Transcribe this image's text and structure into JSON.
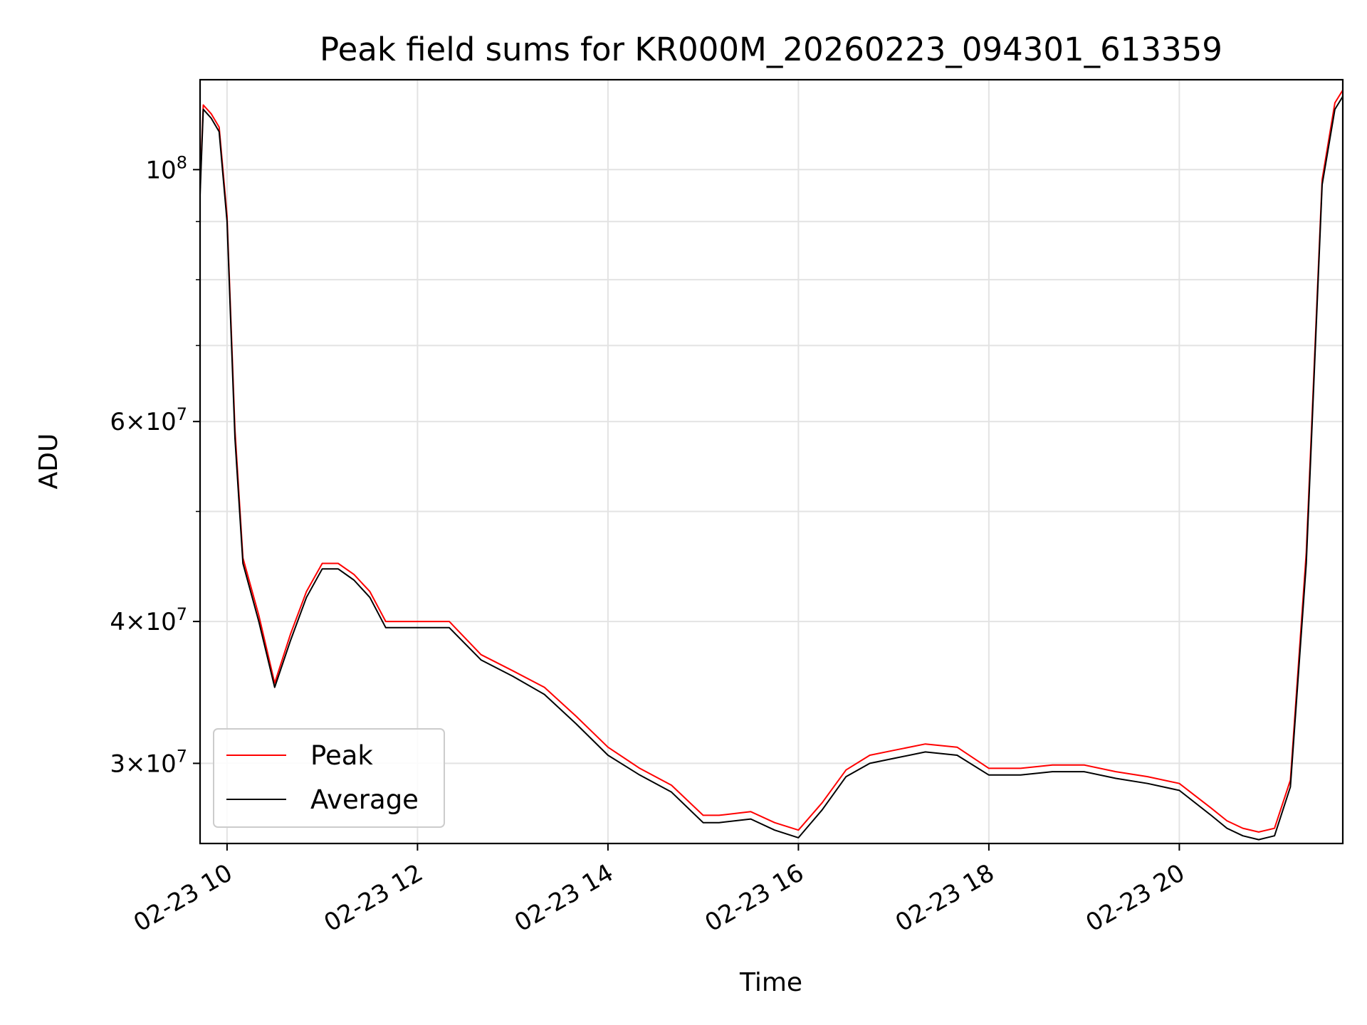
{
  "chart_data": {
    "type": "line",
    "title": "Peak field sums for KR000M_20260223_094301_613359",
    "xlabel": "Time",
    "ylabel": "ADU",
    "y_scale": "log",
    "ylim": [
      25500000,
      120000000
    ],
    "xlim": [
      "02-23 09:43",
      "02-23 21:43"
    ],
    "grid": true,
    "legend_position": "lower-left",
    "x_ticks": [
      "02-23 10",
      "02-23 12",
      "02-23 14",
      "02-23 16",
      "02-23 18",
      "02-23 20"
    ],
    "y_ticks": [
      {
        "value": 30000000,
        "mantissa": "3",
        "exponent": "7"
      },
      {
        "value": 40000000,
        "mantissa": "4",
        "exponent": "7"
      },
      {
        "value": 60000000,
        "mantissa": "6",
        "exponent": "7"
      },
      {
        "value": 100000000,
        "base": "10",
        "exponent": "8"
      }
    ],
    "series": [
      {
        "name": "Peak",
        "color": "#ff0000"
      },
      {
        "name": "Average",
        "color": "#000000"
      }
    ],
    "x": [
      "02-23 09:43",
      "02-23 09:45",
      "02-23 09:50",
      "02-23 09:55",
      "02-23 10:00",
      "02-23 10:05",
      "02-23 10:10",
      "02-23 10:20",
      "02-23 10:30",
      "02-23 10:40",
      "02-23 10:50",
      "02-23 11:00",
      "02-23 11:10",
      "02-23 11:20",
      "02-23 11:30",
      "02-23 11:40",
      "02-23 12:00",
      "02-23 12:20",
      "02-23 12:40",
      "02-23 13:00",
      "02-23 13:20",
      "02-23 13:40",
      "02-23 14:00",
      "02-23 14:20",
      "02-23 14:40",
      "02-23 15:00",
      "02-23 15:10",
      "02-23 15:30",
      "02-23 15:45",
      "02-23 16:00",
      "02-23 16:15",
      "02-23 16:30",
      "02-23 16:45",
      "02-23 17:00",
      "02-23 17:20",
      "02-23 17:40",
      "02-23 18:00",
      "02-23 18:20",
      "02-23 18:40",
      "02-23 19:00",
      "02-23 19:20",
      "02-23 19:40",
      "02-23 20:00",
      "02-23 20:20",
      "02-23 20:30",
      "02-23 20:40",
      "02-23 20:50",
      "02-23 21:00",
      "02-23 21:10",
      "02-23 21:20",
      "02-23 21:30",
      "02-23 21:38",
      "02-23 21:43"
    ],
    "average": [
      95000000,
      113000000,
      111000000,
      108000000,
      90000000,
      58000000,
      45000000,
      40000000,
      35000000,
      38500000,
      42000000,
      44500000,
      44500000,
      43500000,
      42000000,
      39500000,
      39500000,
      39500000,
      37000000,
      35800000,
      34500000,
      32500000,
      30500000,
      29300000,
      28300000,
      26600000,
      26600000,
      26800000,
      26200000,
      25800000,
      27300000,
      29200000,
      30000000,
      30300000,
      30700000,
      30500000,
      29300000,
      29300000,
      29500000,
      29500000,
      29100000,
      28800000,
      28400000,
      27000000,
      26300000,
      25900000,
      25700000,
      25900000,
      28600000,
      45000000,
      97000000,
      113000000,
      116000000
    ],
    "peak": [
      96000000,
      114000000,
      112000000,
      109000000,
      91000000,
      59000000,
      45500000,
      40500000,
      35300000,
      39000000,
      42500000,
      45000000,
      45000000,
      44000000,
      42500000,
      40000000,
      40000000,
      40000000,
      37400000,
      36200000,
      35000000,
      33000000,
      31000000,
      29700000,
      28700000,
      27000000,
      27000000,
      27200000,
      26600000,
      26200000,
      27700000,
      29600000,
      30500000,
      30800000,
      31200000,
      31000000,
      29700000,
      29700000,
      29900000,
      29900000,
      29500000,
      29200000,
      28800000,
      27400000,
      26700000,
      26300000,
      26100000,
      26300000,
      29000000,
      46000000,
      98000000,
      114500000,
      117500000
    ]
  }
}
